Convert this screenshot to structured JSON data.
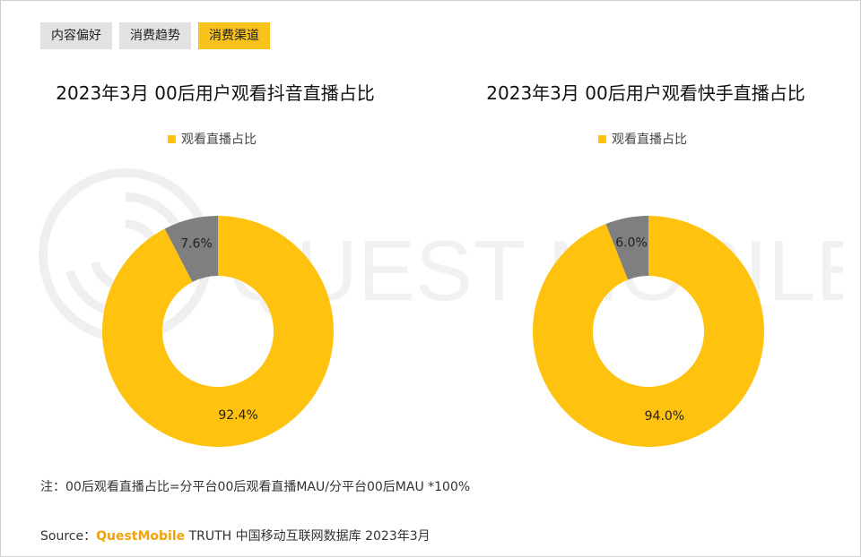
{
  "tabs": [
    {
      "label": "内容偏好",
      "active": false
    },
    {
      "label": "消费趋势",
      "active": false
    },
    {
      "label": "消费渠道",
      "active": true
    }
  ],
  "watermark_text": "QUEST MOBILE",
  "colors": {
    "primary": "#ffc20e",
    "secondary": "#7f7f7f",
    "tab_active": "#f7c21b"
  },
  "chart_data": [
    {
      "type": "pie",
      "title": "2023年3月 00后用户观看抖音直播占比",
      "legend": [
        "观看直播占比"
      ],
      "legend_position": "top",
      "slices": [
        {
          "label": "观看直播占比",
          "value": 92.4,
          "display": "92.4%",
          "color": "#ffc20e"
        },
        {
          "label": "",
          "value": 7.6,
          "display": "7.6%",
          "color": "#7f7f7f"
        }
      ]
    },
    {
      "type": "pie",
      "title": "2023年3月 00后用户观看快手直播占比",
      "legend": [
        "观看直播占比"
      ],
      "legend_position": "top",
      "slices": [
        {
          "label": "观看直播占比",
          "value": 94.0,
          "display": "94.0%",
          "color": "#ffc20e"
        },
        {
          "label": "",
          "value": 6.0,
          "display": "6.0%",
          "color": "#7f7f7f"
        }
      ]
    }
  ],
  "footnote": "注：00后观看直播占比=分平台00后观看直播MAU/分平台00后MAU *100%",
  "source": {
    "prefix": "Source：",
    "brand": "QuestMobile",
    "rest": " TRUTH 中国移动互联网数据库 2023年3月"
  }
}
